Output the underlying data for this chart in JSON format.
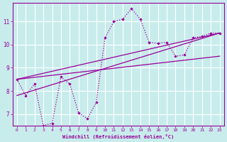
{
  "xlabel": "Windchill (Refroidissement éolien,°C)",
  "background_color": "#c8ecec",
  "line_color": "#990099",
  "grid_color": "#ffffff",
  "xlim": [
    -0.5,
    23.5
  ],
  "ylim": [
    6.5,
    11.8
  ],
  "yticks": [
    7,
    8,
    9,
    10,
    11
  ],
  "xticks": [
    0,
    1,
    2,
    3,
    4,
    5,
    6,
    7,
    8,
    9,
    10,
    11,
    12,
    13,
    14,
    15,
    16,
    17,
    18,
    19,
    20,
    21,
    22,
    23
  ],
  "dotted_series": [
    [
      0,
      8.5
    ],
    [
      1,
      7.8
    ],
    [
      2,
      8.3
    ],
    [
      3,
      6.5
    ],
    [
      4,
      6.6
    ],
    [
      5,
      8.6
    ],
    [
      6,
      8.3
    ],
    [
      7,
      7.05
    ],
    [
      8,
      6.8
    ],
    [
      9,
      7.5
    ],
    [
      10,
      10.3
    ],
    [
      11,
      11.0
    ],
    [
      12,
      11.1
    ],
    [
      13,
      11.55
    ],
    [
      14,
      11.1
    ],
    [
      15,
      10.1
    ],
    [
      16,
      10.05
    ],
    [
      17,
      10.1
    ],
    [
      18,
      9.5
    ],
    [
      19,
      9.55
    ],
    [
      20,
      10.3
    ],
    [
      21,
      10.35
    ],
    [
      22,
      10.5
    ],
    [
      23,
      10.5
    ]
  ],
  "line1": [
    [
      0,
      8.5
    ],
    [
      23,
      10.5
    ]
  ],
  "line2": [
    [
      0,
      7.8
    ],
    [
      23,
      10.5
    ]
  ],
  "line3": [
    [
      0,
      8.5
    ],
    [
      23,
      9.5
    ]
  ]
}
